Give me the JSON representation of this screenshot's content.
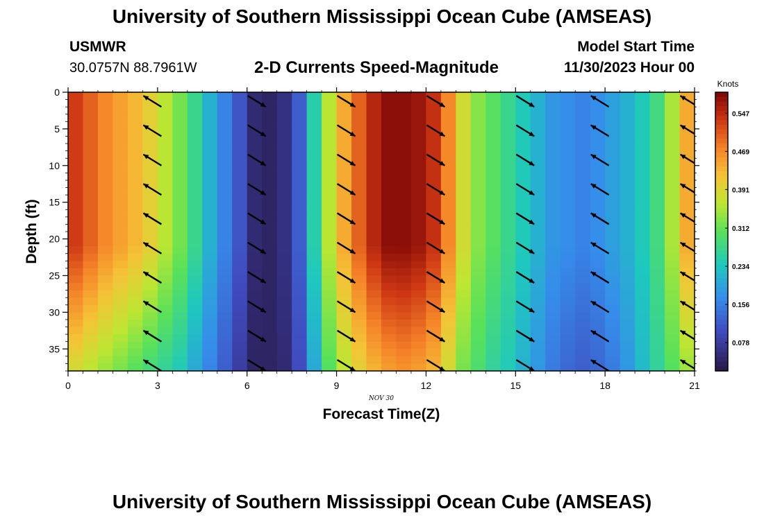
{
  "header": {
    "title": "University of Southern Mississippi Ocean Cube (AMSEAS)",
    "station": "USMWR",
    "coords": "30.0757N  88.7961W",
    "subtitle": "2-D Currents Speed-Magnitude",
    "start_label": "Model Start Time",
    "start_value": "11/30/2023 Hour 00"
  },
  "footer": {
    "title": "University of Southern Mississippi Ocean Cube (AMSEAS)"
  },
  "chart_data": {
    "type": "heatmap",
    "title": "2-D Currents Speed-Magnitude",
    "xlabel": "Forecast Time(Z)",
    "ylabel": "Depth (ft)",
    "date_label": "NOV  30",
    "xlim": [
      0,
      21
    ],
    "ylim": [
      0,
      38
    ],
    "x_ticks": [
      0,
      3,
      6,
      9,
      12,
      15,
      18,
      21
    ],
    "y_ticks": [
      0,
      5,
      10,
      15,
      20,
      25,
      30,
      35
    ],
    "colorbar": {
      "label": "Knots",
      "ticks": [
        "0.547",
        "0.469",
        "0.391",
        "0.312",
        "0.234",
        "0.156",
        "0.078"
      ],
      "tick_values": [
        0.547,
        0.469,
        0.391,
        0.312,
        0.234,
        0.156,
        0.078
      ],
      "range": [
        0.02,
        0.59
      ]
    },
    "speed_columns_hours": [
      0,
      0.5,
      1,
      1.5,
      2,
      2.5,
      3,
      3.5,
      4,
      4.5,
      5,
      5.5,
      6,
      6.5,
      7,
      7.5,
      8,
      8.5,
      9,
      9.5,
      10,
      10.5,
      11,
      11.5,
      12,
      12.5,
      13,
      13.5,
      14,
      14.5,
      15,
      15.5,
      16,
      16.5,
      17,
      17.5,
      18,
      18.5,
      19,
      19.5,
      20,
      20.5
    ],
    "speed_surface_knots": [
      0.53,
      0.5,
      0.47,
      0.45,
      0.43,
      0.4,
      0.36,
      0.32,
      0.27,
      0.21,
      0.16,
      0.11,
      0.05,
      0.04,
      0.06,
      0.12,
      0.25,
      0.36,
      0.44,
      0.5,
      0.55,
      0.58,
      0.58,
      0.57,
      0.54,
      0.47,
      0.38,
      0.33,
      0.3,
      0.27,
      0.24,
      0.21,
      0.18,
      0.17,
      0.16,
      0.17,
      0.19,
      0.21,
      0.24,
      0.28,
      0.35,
      0.44
    ],
    "speed_bottom_knots": [
      0.38,
      0.36,
      0.34,
      0.32,
      0.3,
      0.28,
      0.26,
      0.24,
      0.2,
      0.16,
      0.12,
      0.08,
      0.04,
      0.04,
      0.05,
      0.1,
      0.2,
      0.3,
      0.36,
      0.4,
      0.43,
      0.45,
      0.46,
      0.45,
      0.43,
      0.38,
      0.32,
      0.29,
      0.26,
      0.24,
      0.21,
      0.18,
      0.15,
      0.13,
      0.12,
      0.13,
      0.15,
      0.18,
      0.22,
      0.26,
      0.3,
      0.34
    ],
    "vectors": {
      "hours": [
        2.5,
        6.0,
        9.0,
        12.0,
        15.0,
        17.5,
        20.5
      ],
      "depths": [
        2,
        6,
        10,
        14,
        18,
        22,
        26,
        30,
        34,
        38
      ],
      "direction": [
        "NW",
        "SE",
        "SE",
        "SE",
        "SE",
        "NW",
        "NW"
      ]
    }
  }
}
